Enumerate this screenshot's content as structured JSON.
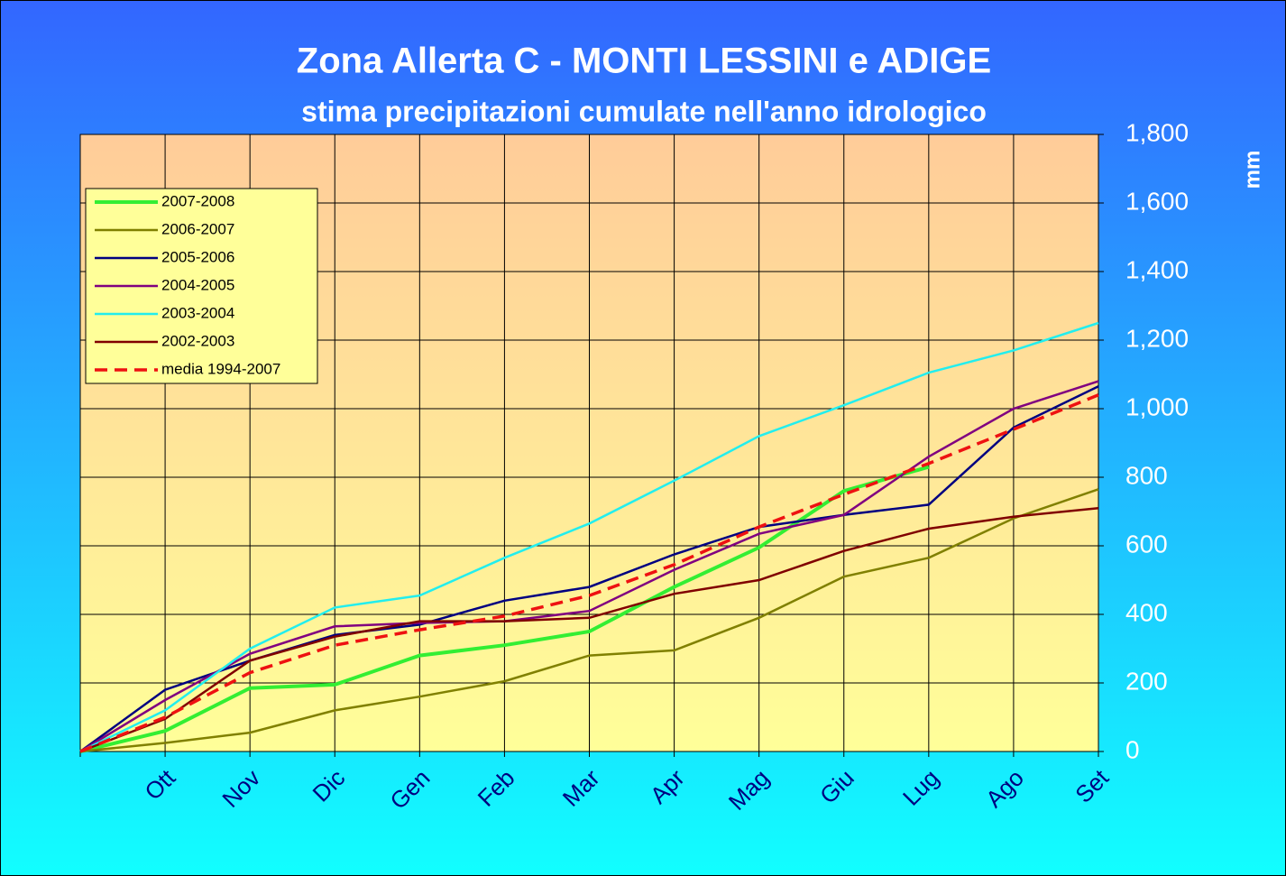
{
  "chart_data": {
    "type": "line",
    "title": "Zona Allerta C -  MONTI LESSINI e ADIGE",
    "subtitle": "stima precipitazioni cumulate nell'anno idrologico",
    "y_label": "mm",
    "categories": [
      null,
      "Ott",
      "Nov",
      "Dic",
      "Gen",
      "Feb",
      "Mar",
      "Apr",
      "Mag",
      "Giu",
      "Lug",
      "Ago",
      "Set"
    ],
    "ylim": [
      0,
      1800
    ],
    "yticks": [
      0,
      200,
      400,
      600,
      800,
      {
        "value": 1000,
        "label": "1,000"
      },
      {
        "value": 1200,
        "label": "1,200"
      },
      {
        "value": 1400,
        "label": "1,400"
      },
      {
        "value": 1600,
        "label": "1,600"
      },
      {
        "value": 1800,
        "label": "1,800"
      }
    ],
    "grid": true,
    "legend": "upper left",
    "series": [
      {
        "name": "2007-2008",
        "color": "#33ee33",
        "values": [
          0,
          60,
          185,
          195,
          280,
          310,
          350,
          480,
          595,
          760,
          830,
          null,
          null
        ]
      },
      {
        "name": "2006-2007",
        "color": "#808000",
        "values": [
          0,
          25,
          55,
          120,
          160,
          205,
          280,
          295,
          390,
          510,
          565,
          680,
          765
        ]
      },
      {
        "name": "2005-2006",
        "color": "#000080",
        "values": [
          0,
          180,
          265,
          340,
          370,
          440,
          480,
          575,
          655,
          690,
          720,
          945,
          1065
        ]
      },
      {
        "name": "2004-2005",
        "color": "#800080",
        "values": [
          0,
          150,
          285,
          365,
          375,
          380,
          410,
          530,
          635,
          690,
          860,
          1000,
          1080
        ]
      },
      {
        "name": "2003-2004",
        "color": "#22eeee",
        "values": [
          0,
          120,
          300,
          420,
          455,
          565,
          665,
          790,
          920,
          1010,
          1105,
          1170,
          1250
        ]
      },
      {
        "name": "2002-2003",
        "color": "#800000",
        "values": [
          0,
          95,
          265,
          335,
          380,
          380,
          390,
          460,
          500,
          585,
          650,
          685,
          710
        ]
      },
      {
        "name": "media 1994-2007",
        "color": "#ee1111",
        "dashed": true,
        "values": [
          0,
          100,
          230,
          310,
          355,
          395,
          455,
          545,
          655,
          750,
          840,
          940,
          1040
        ]
      }
    ]
  }
}
